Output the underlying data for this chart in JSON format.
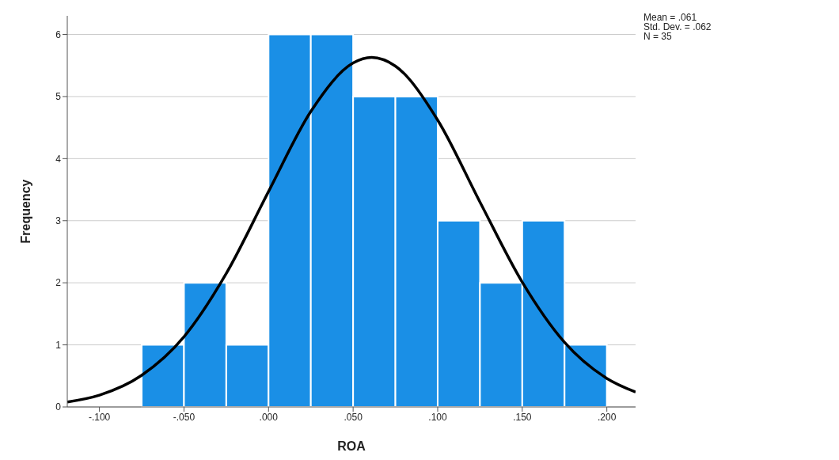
{
  "chart_data": {
    "type": "histogram",
    "xlabel": "ROA",
    "ylabel": "Frequency",
    "bins": [
      -0.075,
      -0.05,
      -0.025,
      0,
      0.025,
      0.05,
      0.075,
      0.1,
      0.125,
      0.15,
      0.175,
      0.2
    ],
    "values": [
      1,
      2,
      1,
      6,
      6,
      5,
      5,
      3,
      2,
      3,
      1
    ],
    "color": "#1a8fe6",
    "series": [
      {
        "type": "line",
        "color": "#000000",
        "x": [
          -0.119,
          -0.1,
          -0.075,
          -0.05,
          -0.025,
          0,
          0.025,
          0.05,
          0.061,
          0.075,
          0.1,
          0.125,
          0.15,
          0.175,
          0.2,
          0.217
        ],
        "values": [
          0.08,
          0.19,
          0.51,
          1.13,
          2.15,
          3.47,
          4.76,
          5.54,
          5.63,
          5.49,
          4.62,
          3.3,
          2.01,
          1.04,
          0.46,
          0.24
        ]
      }
    ],
    "xlim": [
      -0.119,
      0.217
    ],
    "xticks": [
      {
        "value": -0.1,
        "label": "-.100"
      },
      {
        "value": -0.05,
        "label": "-.050"
      },
      {
        "value": 0,
        "label": ".000"
      },
      {
        "value": 0.05,
        "label": ".050"
      },
      {
        "value": 0.1,
        "label": ".100"
      },
      {
        "value": 0.15,
        "label": ".150"
      },
      {
        "value": 0.2,
        "label": ".200"
      }
    ],
    "ylim": [
      0,
      6.3
    ],
    "yticks": [
      0,
      1,
      2,
      3,
      4,
      5,
      6
    ],
    "grid": "y",
    "annotations": [
      "Mean = .061",
      "Std. Dev. = .062",
      "N = 35"
    ]
  }
}
